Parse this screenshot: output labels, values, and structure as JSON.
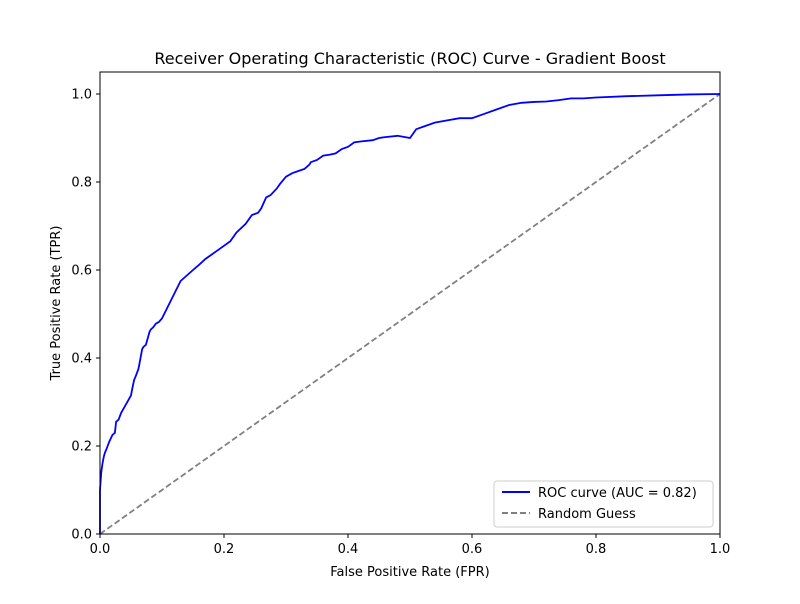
{
  "chart_data": {
    "type": "line",
    "title": "Receiver Operating Characteristic (ROC) Curve - Gradient Boost",
    "xlabel": "False Positive Rate (FPR)",
    "ylabel": "True Positive Rate (TPR)",
    "xlim": [
      0.0,
      1.0
    ],
    "ylim": [
      0.0,
      1.05
    ],
    "xticks": [
      "0.0",
      "0.2",
      "0.4",
      "0.6",
      "0.8",
      "1.0"
    ],
    "yticks": [
      "0.0",
      "0.2",
      "0.4",
      "0.6",
      "0.8",
      "1.0"
    ],
    "grid": false,
    "legend_position": "lower-right",
    "series": [
      {
        "name": "ROC curve (AUC = 0.82)",
        "color": "#0000ff",
        "line_style": "solid",
        "x": [
          0.0,
          0.0,
          0.002,
          0.004,
          0.006,
          0.008,
          0.011,
          0.015,
          0.02,
          0.024,
          0.026,
          0.03,
          0.034,
          0.04,
          0.046,
          0.05,
          0.052,
          0.055,
          0.058,
          0.062,
          0.064,
          0.068,
          0.07,
          0.074,
          0.076,
          0.08,
          0.082,
          0.086,
          0.09,
          0.095,
          0.1,
          0.13,
          0.15,
          0.16,
          0.17,
          0.19,
          0.21,
          0.22,
          0.235,
          0.245,
          0.255,
          0.26,
          0.268,
          0.275,
          0.285,
          0.29,
          0.3,
          0.31,
          0.32,
          0.33,
          0.338,
          0.34,
          0.35,
          0.36,
          0.37,
          0.38,
          0.39,
          0.4,
          0.41,
          0.42,
          0.44,
          0.45,
          0.46,
          0.48,
          0.5,
          0.51,
          0.52,
          0.54,
          0.56,
          0.58,
          0.6,
          0.62,
          0.64,
          0.66,
          0.68,
          0.7,
          0.72,
          0.74,
          0.76,
          0.78,
          0.8,
          0.85,
          0.9,
          0.95,
          1.0
        ],
        "y": [
          0.0,
          0.1,
          0.14,
          0.16,
          0.175,
          0.185,
          0.195,
          0.21,
          0.225,
          0.23,
          0.255,
          0.26,
          0.275,
          0.29,
          0.305,
          0.315,
          0.33,
          0.35,
          0.36,
          0.375,
          0.39,
          0.42,
          0.425,
          0.43,
          0.44,
          0.46,
          0.465,
          0.47,
          0.478,
          0.482,
          0.49,
          0.575,
          0.6,
          0.612,
          0.625,
          0.645,
          0.665,
          0.685,
          0.705,
          0.725,
          0.73,
          0.74,
          0.765,
          0.77,
          0.785,
          0.795,
          0.812,
          0.82,
          0.825,
          0.83,
          0.84,
          0.845,
          0.85,
          0.86,
          0.862,
          0.865,
          0.875,
          0.88,
          0.89,
          0.892,
          0.895,
          0.9,
          0.902,
          0.905,
          0.9,
          0.92,
          0.925,
          0.935,
          0.94,
          0.945,
          0.945,
          0.955,
          0.965,
          0.975,
          0.98,
          0.982,
          0.983,
          0.986,
          0.99,
          0.99,
          0.992,
          0.995,
          0.997,
          0.999,
          1.0
        ]
      },
      {
        "name": "Random Guess",
        "color": "#808080",
        "line_style": "dashed",
        "x": [
          0.0,
          1.0
        ],
        "y": [
          0.0,
          1.0
        ]
      }
    ]
  }
}
